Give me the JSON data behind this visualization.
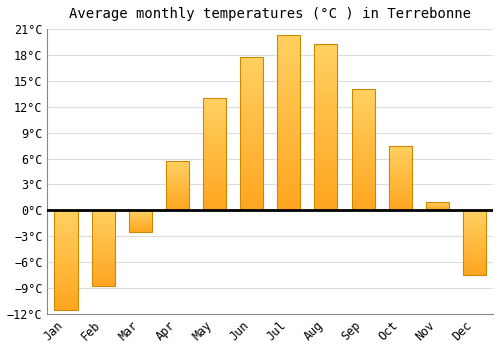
{
  "title": "Average monthly temperatures (°C ) in Terrebonne",
  "months": [
    "Jan",
    "Feb",
    "Mar",
    "Apr",
    "May",
    "Jun",
    "Jul",
    "Aug",
    "Sep",
    "Oct",
    "Nov",
    "Dec"
  ],
  "values": [
    -11.5,
    -8.8,
    -2.5,
    5.7,
    13.0,
    17.8,
    20.3,
    19.3,
    14.0,
    7.5,
    1.0,
    -7.5
  ],
  "bar_color": "#FFA500",
  "bar_top_color": "#FFD050",
  "ylim": [
    -12,
    21
  ],
  "yticks": [
    -12,
    -9,
    -6,
    -3,
    0,
    3,
    6,
    9,
    12,
    15,
    18,
    21
  ],
  "background_color": "#ffffff",
  "plot_area_bg": "#ffffff",
  "grid_color": "#dddddd",
  "zero_line_color": "#000000",
  "spine_color": "#888888",
  "title_fontsize": 10,
  "tick_fontsize": 8.5
}
